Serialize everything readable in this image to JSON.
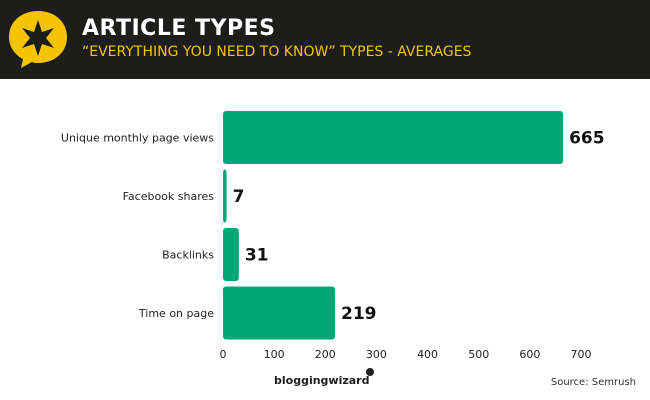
{
  "header": {
    "title": "ARTICLE TYPES",
    "subtitle": "“EVERYTHING YOU NEED TO KNOW” TYPES - AVERAGES"
  },
  "colors": {
    "header_bg": "#1d1d1b",
    "badge": "#f5c400",
    "bar": "#00a878",
    "subtitle": "#f5c400"
  },
  "icons": {
    "badge": "speech-bubble-star-icon"
  },
  "chart_data": {
    "type": "bar",
    "orientation": "horizontal",
    "categories": [
      "Unique monthly page views",
      "Facebook shares",
      "Backlinks",
      "Time on page"
    ],
    "values": [
      665,
      7,
      31,
      219
    ],
    "value_labels": [
      "665",
      "7",
      "31",
      "219"
    ],
    "title": "ARTICLE TYPES",
    "subtitle": "“EVERYTHING YOU NEED TO KNOW” TYPES - AVERAGES",
    "xlabel": "",
    "ylabel": "",
    "xlim": [
      0,
      700
    ],
    "xticks": [
      0,
      100,
      200,
      300,
      400,
      500,
      600,
      700
    ],
    "grid": false,
    "legend": "none"
  },
  "footer": {
    "brand": "bloggingwizard",
    "source": "Source: Semrush"
  }
}
